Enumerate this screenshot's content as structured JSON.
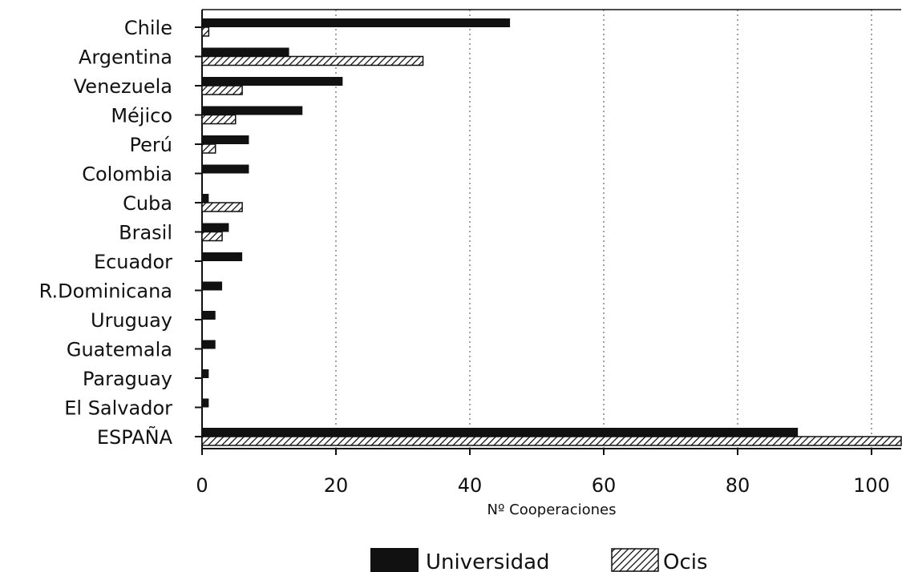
{
  "chart_data": {
    "type": "bar",
    "orientation": "horizontal",
    "categories": [
      "Chile",
      "Argentina",
      "Venezuela",
      "Méjico",
      "Perú",
      "Colombia",
      "Cuba",
      "Brasil",
      "Ecuador",
      "R.Dominicana",
      "Uruguay",
      "Guatemala",
      "Paraguay",
      "El Salvador",
      "ESPAÑA"
    ],
    "series": [
      {
        "name": "Universidad",
        "values": [
          46,
          13,
          21,
          15,
          7,
          7,
          1,
          4,
          6,
          3,
          2,
          2,
          1,
          1,
          89
        ],
        "color": "#111111",
        "pattern": "solid"
      },
      {
        "name": "Ocis",
        "values": [
          1,
          33,
          6,
          5,
          2,
          0,
          6,
          3,
          0,
          0,
          0,
          0,
          0,
          0,
          105
        ],
        "color": "#111111",
        "pattern": "diagonal-hatch"
      }
    ],
    "xlabel": "Nº Cooperaciones",
    "xlim": [
      0,
      105
    ],
    "xticks": [
      0,
      20,
      40,
      60,
      80,
      100
    ],
    "grid": "vertical dotted",
    "legend_position": "bottom-center"
  }
}
